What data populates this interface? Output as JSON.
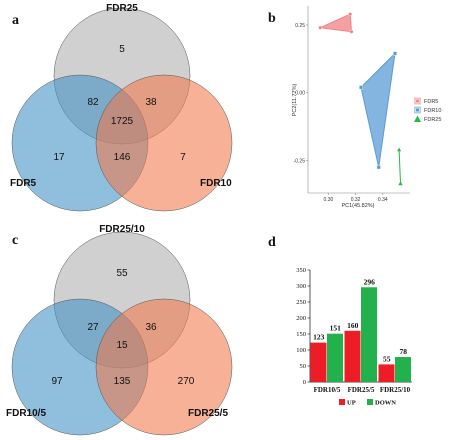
{
  "panels": {
    "a": "a",
    "b": "b",
    "c": "c",
    "d": "d"
  },
  "venn_a": {
    "sets": [
      "FDR25",
      "FDR5",
      "FDR10"
    ],
    "colors": [
      "#b3b3b3",
      "#3f8fc4",
      "#f0784a"
    ],
    "regions": {
      "top_only": "5",
      "left_only": "17",
      "right_only": "7",
      "top_left": "82",
      "top_right": "38",
      "left_right": "146",
      "center": "1725"
    }
  },
  "venn_c": {
    "sets": [
      "FDR25/10",
      "FDR10/5",
      "FDR25/5"
    ],
    "colors": [
      "#b3b3b3",
      "#3f8fc4",
      "#f0784a"
    ],
    "regions": {
      "top_only": "55",
      "left_only": "97",
      "right_only": "270",
      "top_left": "27",
      "top_right": "36",
      "left_right": "135",
      "center": "15"
    }
  },
  "chart_data": [
    {
      "type": "scatter",
      "xlabel": "PC1(45.82%)",
      "ylabel": "PC2(11.77%)",
      "xticks": [
        "0.30",
        "0.32",
        "0.34"
      ],
      "yticks": [
        "0.25",
        "0.00",
        "-0.25"
      ],
      "xlim": [
        0.285,
        0.36
      ],
      "ylim": [
        -0.37,
        0.32
      ],
      "legend_position": "right",
      "series": [
        {
          "name": "FDR5",
          "color": "#f08080",
          "marker": "circle",
          "x": [
            0.294,
            0.316,
            0.317
          ],
          "y": [
            0.24,
            0.29,
            0.225
          ]
        },
        {
          "name": "FDR10",
          "color": "#5b9bd5",
          "marker": "square",
          "x": [
            0.324,
            0.337,
            0.349
          ],
          "y": [
            0.02,
            -0.275,
            0.145
          ]
        },
        {
          "name": "FDR25",
          "color": "#22bb44",
          "marker": "triangle",
          "x": [
            0.352,
            0.353,
            0.353
          ],
          "y": [
            -0.21,
            -0.335,
            -0.335
          ]
        }
      ]
    },
    {
      "type": "bar",
      "categories": [
        "FDR10/5",
        "FDR25/5",
        "FDR25/10"
      ],
      "series": [
        {
          "name": "UP",
          "color": "#ee1c24",
          "values": [
            123,
            160,
            55
          ]
        },
        {
          "name": "DOWN",
          "color": "#22b14c",
          "values": [
            151,
            296,
            78
          ]
        }
      ],
      "data_labels": [
        [
          "123",
          "151"
        ],
        [
          "160",
          "296"
        ],
        [
          "55",
          "78"
        ]
      ],
      "ylim": [
        0,
        350
      ],
      "yticks": [
        "0",
        "50",
        "100",
        "150",
        "200",
        "250",
        "300",
        "350"
      ],
      "legend_position": "bottom"
    }
  ]
}
